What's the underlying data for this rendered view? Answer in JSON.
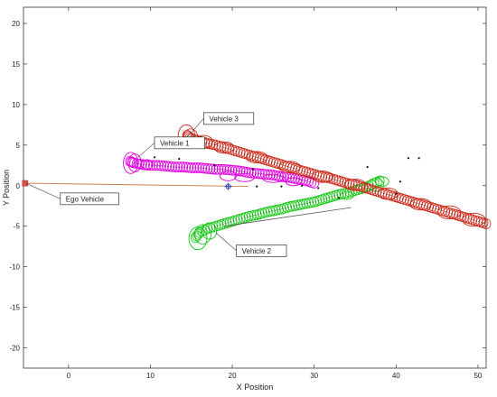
{
  "chart_data": {
    "type": "scatter",
    "xlabel": "X Position",
    "ylabel": "Y Position",
    "xlim": [
      -5.5,
      51
    ],
    "ylim": [
      -22.5,
      22
    ],
    "xticks": [
      0,
      10,
      20,
      30,
      40,
      50
    ],
    "yticks": [
      -20,
      -15,
      -10,
      -5,
      0,
      5,
      10,
      15,
      20
    ],
    "grid": false,
    "colors": {
      "vehicle1": "#e000e0",
      "vehicle2": "#18c818",
      "vehicle3": "#cc2a1a",
      "ego": "#c87a4a",
      "marker": "#2b3fbf",
      "ego_marker": "#e05050"
    },
    "ego_vehicle": {
      "label": "Ego Vehicle",
      "marker": [
        -5.3,
        0.3
      ],
      "path": [
        [
          -5.3,
          0.3
        ],
        [
          22,
          -0.1
        ]
      ],
      "label_pos": [
        -1,
        -0.9
      ],
      "anchor": [
        -5.2,
        0.3
      ]
    },
    "sensor_marker": [
      19.5,
      -0.1
    ],
    "vehicles": [
      {
        "label": "Vehicle 1",
        "color_key": "vehicle1",
        "label_pos": [
          10.5,
          6.0
        ],
        "anchor": [
          8.5,
          3.5
        ],
        "track": [
          [
            7.5,
            3.0
          ],
          [
            8.0,
            2.8
          ],
          [
            9.0,
            2.6
          ],
          [
            10.0,
            2.5
          ],
          [
            11.0,
            2.5
          ],
          [
            12.0,
            2.4
          ],
          [
            13.0,
            2.3
          ],
          [
            14.0,
            2.3
          ],
          [
            15.0,
            2.2
          ],
          [
            16.0,
            2.2
          ],
          [
            17.0,
            2.1
          ],
          [
            18.0,
            2.0
          ],
          [
            19.0,
            2.0
          ],
          [
            20.0,
            1.9
          ],
          [
            21.0,
            1.8
          ],
          [
            22.0,
            1.6
          ],
          [
            23.0,
            1.5
          ],
          [
            24.0,
            1.4
          ],
          [
            25.0,
            1.3
          ],
          [
            26.0,
            1.1
          ],
          [
            27.0,
            1.0
          ],
          [
            28.0,
            0.8
          ],
          [
            29.0,
            0.6
          ],
          [
            30.0,
            0.3
          ]
        ],
        "ellipses": [
          {
            "x": 7.6,
            "y": 2.8,
            "rx": 0.9,
            "ry": 1.3
          },
          {
            "x": 8.1,
            "y": 2.8,
            "rx": 0.8,
            "ry": 1.1
          },
          {
            "x": 9.6,
            "y": 2.6,
            "rx": 0.7,
            "ry": 0.6
          },
          {
            "x": 19.5,
            "y": 1.2,
            "rx": 1.0,
            "ry": 0.6
          },
          {
            "x": 21.5,
            "y": 1.0,
            "rx": 1.2,
            "ry": 0.5
          },
          {
            "x": 25.0,
            "y": 0.9,
            "rx": 1.3,
            "ry": 0.5
          },
          {
            "x": 27.5,
            "y": 0.5,
            "rx": 1.0,
            "ry": 0.5
          }
        ]
      },
      {
        "label": "Vehicle 2",
        "color_key": "vehicle2",
        "label_pos": [
          20.5,
          -7.3
        ],
        "anchor": [
          18.0,
          -5.8
        ],
        "track": [
          [
            15.5,
            -6.4
          ],
          [
            16.0,
            -5.8
          ],
          [
            17.0,
            -5.3
          ],
          [
            18.0,
            -5.0
          ],
          [
            19.0,
            -4.7
          ],
          [
            20.0,
            -4.4
          ],
          [
            21.0,
            -4.1
          ],
          [
            22.0,
            -3.8
          ],
          [
            23.0,
            -3.6
          ],
          [
            24.0,
            -3.3
          ],
          [
            25.0,
            -3.1
          ],
          [
            26.0,
            -2.9
          ],
          [
            27.0,
            -2.6
          ],
          [
            28.0,
            -2.4
          ],
          [
            29.0,
            -2.2
          ],
          [
            30.0,
            -2.0
          ],
          [
            31.0,
            -1.7
          ],
          [
            32.0,
            -1.4
          ],
          [
            33.0,
            -1.1
          ],
          [
            34.0,
            -0.9
          ],
          [
            35.0,
            -0.6
          ],
          [
            36.0,
            -0.3
          ],
          [
            37.0,
            0.1
          ],
          [
            38.0,
            0.6
          ]
        ],
        "ellipses": [
          {
            "x": 15.8,
            "y": -6.5,
            "rx": 1.1,
            "ry": 1.4
          },
          {
            "x": 16.4,
            "y": -6.0,
            "rx": 1.0,
            "ry": 1.2
          },
          {
            "x": 17.2,
            "y": -5.6,
            "rx": 0.9,
            "ry": 1.0
          },
          {
            "x": 34.0,
            "y": -1.2,
            "rx": 0.8,
            "ry": 0.5
          },
          {
            "x": 37.5,
            "y": 0.1,
            "rx": 1.0,
            "ry": 0.8
          },
          {
            "x": 38.3,
            "y": 0.5,
            "rx": 0.8,
            "ry": 0.6
          }
        ],
        "reference_line": [
          [
            19.0,
            -5.0
          ],
          [
            34.5,
            -2.7
          ]
        ]
      },
      {
        "label": "Vehicle 3",
        "color_key": "vehicle3",
        "label_pos": [
          16.5,
          9.0
        ],
        "anchor": [
          14.5,
          6.0
        ],
        "track": [
          [
            14.5,
            6.2
          ],
          [
            15.0,
            5.8
          ],
          [
            16.0,
            5.5
          ],
          [
            17.0,
            5.2
          ],
          [
            18.0,
            5.0
          ],
          [
            19.0,
            4.7
          ],
          [
            20.0,
            4.4
          ],
          [
            21.0,
            4.1
          ],
          [
            22.0,
            3.8
          ],
          [
            23.0,
            3.5
          ],
          [
            24.0,
            3.2
          ],
          [
            25.0,
            2.9
          ],
          [
            26.0,
            2.6
          ],
          [
            27.0,
            2.3
          ],
          [
            28.0,
            2.0
          ],
          [
            29.0,
            1.7
          ],
          [
            30.0,
            1.4
          ],
          [
            31.0,
            1.1
          ],
          [
            32.0,
            0.9
          ],
          [
            33.0,
            0.6
          ],
          [
            34.0,
            0.3
          ],
          [
            35.0,
            0.1
          ],
          [
            36.0,
            -0.2
          ],
          [
            37.0,
            -0.5
          ],
          [
            38.0,
            -0.8
          ],
          [
            39.0,
            -1.1
          ],
          [
            40.0,
            -1.4
          ],
          [
            41.0,
            -1.7
          ],
          [
            42.0,
            -2.0
          ],
          [
            43.0,
            -2.3
          ],
          [
            44.0,
            -2.6
          ],
          [
            45.0,
            -2.9
          ],
          [
            46.0,
            -3.2
          ],
          [
            47.0,
            -3.5
          ],
          [
            48.0,
            -3.8
          ],
          [
            49.0,
            -4.1
          ],
          [
            50.0,
            -4.4
          ],
          [
            51.0,
            -4.7
          ]
        ],
        "ellipses": [
          {
            "x": 14.4,
            "y": 6.2,
            "rx": 1.0,
            "ry": 1.3
          },
          {
            "x": 14.9,
            "y": 5.9,
            "rx": 0.9,
            "ry": 1.1
          },
          {
            "x": 16.5,
            "y": 5.4,
            "rx": 1.1,
            "ry": 0.8
          },
          {
            "x": 19.0,
            "y": 4.7,
            "rx": 1.2,
            "ry": 0.7
          },
          {
            "x": 23.0,
            "y": 3.5,
            "rx": 1.3,
            "ry": 0.7
          },
          {
            "x": 27.0,
            "y": 2.3,
            "rx": 1.3,
            "ry": 0.7
          },
          {
            "x": 31.0,
            "y": 1.1,
            "rx": 1.3,
            "ry": 0.7
          },
          {
            "x": 35.0,
            "y": 0.1,
            "rx": 1.3,
            "ry": 0.7
          },
          {
            "x": 39.0,
            "y": -1.0,
            "rx": 1.2,
            "ry": 0.7
          },
          {
            "x": 43.0,
            "y": -2.3,
            "rx": 1.3,
            "ry": 0.7
          },
          {
            "x": 46.5,
            "y": -3.3,
            "rx": 1.4,
            "ry": 0.8
          },
          {
            "x": 49.5,
            "y": -4.2,
            "rx": 1.4,
            "ry": 0.8
          }
        ]
      }
    ],
    "detections": [
      [
        10.5,
        3.5
      ],
      [
        13.5,
        3.3
      ],
      [
        17.8,
        2.5
      ],
      [
        23.0,
        -0.1
      ],
      [
        26.0,
        -0.1
      ],
      [
        28.5,
        0.0
      ],
      [
        30.5,
        -0.3
      ],
      [
        36.5,
        2.3
      ],
      [
        40.5,
        0.5
      ],
      [
        41.5,
        3.4
      ],
      [
        42.8,
        3.4
      ],
      [
        40.0,
        -1.0
      ],
      [
        33.0,
        -1.5
      ],
      [
        22.5,
        2.0
      ]
    ]
  }
}
